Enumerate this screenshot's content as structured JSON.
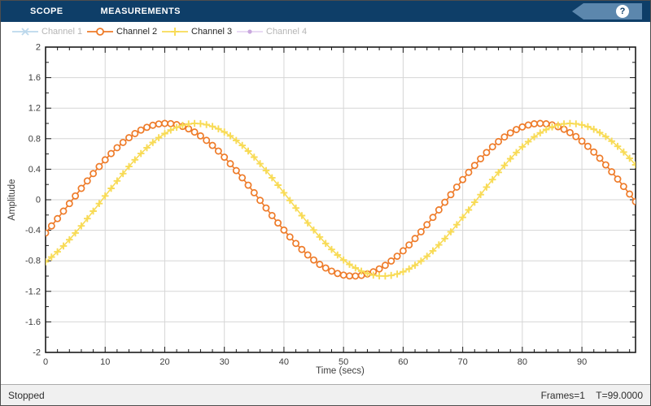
{
  "toolbar": {
    "tabs": [
      {
        "label": "SCOPE"
      },
      {
        "label": "MEASUREMENTS"
      }
    ],
    "help_label": "?",
    "bg_color": "#0E3E68",
    "help_tag_color": "#5C87AD"
  },
  "legend": {
    "items": [
      {
        "label": "Channel 1",
        "marker": "x",
        "color": "#BCD8EC",
        "marker_color": "#BCD8EC",
        "enabled": false,
        "text_color": "#B5B5B5"
      },
      {
        "label": "Channel 2",
        "marker": "circle",
        "color": "#EE7B29",
        "marker_color": "#EE7B29",
        "enabled": true,
        "text_color": "#262626"
      },
      {
        "label": "Channel 3",
        "marker": "plus",
        "color": "#F8DB56",
        "marker_color": "#F8DB56",
        "enabled": true,
        "text_color": "#262626"
      },
      {
        "label": "Channel 4",
        "marker": "dot",
        "color": "#E6D5F2",
        "marker_color": "#C9A8DE",
        "enabled": false,
        "text_color": "#B5B5B5"
      }
    ]
  },
  "chart_data": {
    "type": "line",
    "title": "",
    "xlabel": "Time (secs)",
    "ylabel": "Amplitude",
    "xlim": [
      0,
      99
    ],
    "ylim": [
      -2,
      2
    ],
    "xticks": [
      0,
      10,
      20,
      30,
      40,
      50,
      60,
      70,
      80,
      90
    ],
    "yticks": [
      -2,
      -1.6,
      -1.2,
      -0.8,
      -0.4,
      0,
      0.4,
      0.8,
      1.2,
      1.6,
      2
    ],
    "x_minor_step": 2,
    "y_minor_step": 0.2,
    "grid": true,
    "grid_color": "#D6D6D6",
    "axis_color": "#1a1a1a",
    "legend_position": "top-left-above-plot",
    "x_start": 0,
    "x_step": 1,
    "n_samples": 100,
    "hidden_series": [
      "Channel 1",
      "Channel 4"
    ],
    "series": [
      {
        "name": "Channel 2",
        "color": "#EE7B29",
        "marker": "circle",
        "values": [
          -0.435,
          -0.343,
          -0.247,
          -0.149,
          -0.05,
          0.05,
          0.149,
          0.247,
          0.343,
          0.435,
          0.523,
          0.605,
          0.682,
          0.751,
          0.813,
          0.867,
          0.913,
          0.949,
          0.976,
          0.993,
          1,
          0.997,
          0.984,
          0.961,
          0.929,
          0.887,
          0.837,
          0.778,
          0.712,
          0.638,
          0.558,
          0.472,
          0.382,
          0.288,
          0.191,
          0.092,
          -0.008,
          -0.108,
          -0.207,
          -0.304,
          -0.397,
          -0.487,
          -0.572,
          -0.651,
          -0.723,
          -0.789,
          -0.847,
          -0.894,
          -0.935,
          -0.966,
          -0.987,
          -0.998,
          -0.999,
          -0.991,
          -0.972,
          -0.944,
          -0.906,
          -0.859,
          -0.803,
          -0.74,
          -0.669,
          -0.592,
          -0.508,
          -0.42,
          -0.327,
          -0.231,
          -0.133,
          -0.033,
          0.067,
          0.166,
          0.264,
          0.359,
          0.45,
          0.537,
          0.619,
          0.694,
          0.762,
          0.823,
          0.876,
          0.92,
          0.954,
          0.979,
          0.995,
          1,
          0.995,
          0.981,
          0.957,
          0.923,
          0.88,
          0.828,
          0.768,
          0.7,
          0.625,
          0.544,
          0.457,
          0.366,
          0.271,
          0.174,
          0.075,
          -0.025
        ]
      },
      {
        "name": "Channel 3",
        "color": "#F8DB56",
        "marker": "plus",
        "values": [
          -0.813,
          -0.751,
          -0.682,
          -0.605,
          -0.523,
          -0.435,
          -0.343,
          -0.247,
          -0.149,
          -0.05,
          0.05,
          0.149,
          0.247,
          0.343,
          0.435,
          0.523,
          0.605,
          0.682,
          0.751,
          0.813,
          0.867,
          0.913,
          0.949,
          0.976,
          0.993,
          1,
          0.997,
          0.984,
          0.961,
          0.929,
          0.887,
          0.837,
          0.778,
          0.712,
          0.638,
          0.558,
          0.472,
          0.382,
          0.288,
          0.191,
          0.092,
          -0.008,
          -0.108,
          -0.207,
          -0.304,
          -0.397,
          -0.487,
          -0.572,
          -0.651,
          -0.723,
          -0.789,
          -0.847,
          -0.894,
          -0.935,
          -0.966,
          -0.987,
          -0.998,
          -0.999,
          -0.991,
          -0.972,
          -0.944,
          -0.906,
          -0.859,
          -0.803,
          -0.74,
          -0.669,
          -0.592,
          -0.508,
          -0.42,
          -0.327,
          -0.231,
          -0.133,
          -0.033,
          0.067,
          0.166,
          0.264,
          0.359,
          0.45,
          0.537,
          0.619,
          0.694,
          0.762,
          0.823,
          0.876,
          0.92,
          0.954,
          0.979,
          0.995,
          1,
          0.995,
          0.981,
          0.957,
          0.923,
          0.88,
          0.828,
          0.768,
          0.7,
          0.625,
          0.544,
          0.457
        ]
      }
    ]
  },
  "status_bar": {
    "left": "Stopped",
    "frames": "Frames=1",
    "time": "T=99.0000"
  }
}
